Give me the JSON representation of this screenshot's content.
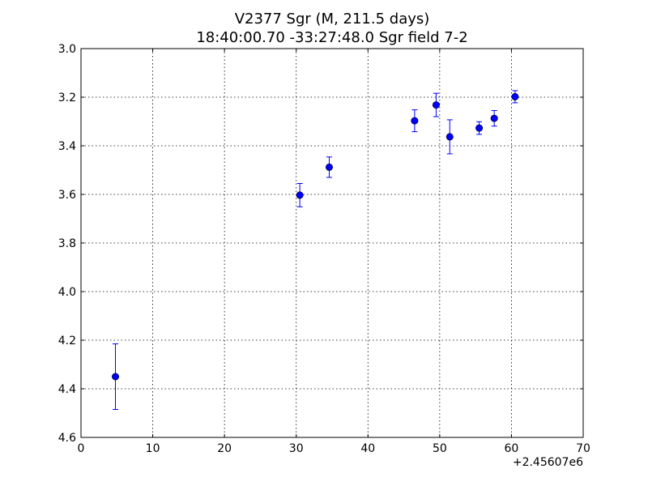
{
  "chart_data": {
    "type": "scatter",
    "title": "V2377 Sgr  (M, 211.5 days)",
    "subtitle": "18:40:00.70 -33:27:48.0 Sgr field 7-2",
    "xlabel": "",
    "ylabel": "",
    "x_offset_label": "+2.45607e6",
    "xlim": [
      0,
      70
    ],
    "ylim": [
      3.0,
      4.6
    ],
    "y_inverted": true,
    "grid": true,
    "x_ticks": [
      "0",
      "10",
      "20",
      "30",
      "40",
      "50",
      "60",
      "70"
    ],
    "y_ticks": [
      "3.0",
      "3.2",
      "3.4",
      "3.6",
      "3.8",
      "4.0",
      "4.2",
      "4.4",
      "4.6"
    ],
    "marker_color": "#0000ff",
    "errorbar_color": "#0000ff",
    "series": [
      {
        "points": [
          {
            "x": 4.8,
            "y": 4.35,
            "err": 0.135
          },
          {
            "x": 30.5,
            "y": 3.603,
            "err": 0.048
          },
          {
            "x": 34.6,
            "y": 3.488,
            "err": 0.042
          },
          {
            "x": 46.5,
            "y": 3.297,
            "err": 0.045
          },
          {
            "x": 49.5,
            "y": 3.232,
            "err": 0.048
          },
          {
            "x": 51.4,
            "y": 3.363,
            "err": 0.07
          },
          {
            "x": 55.5,
            "y": 3.327,
            "err": 0.026
          },
          {
            "x": 57.6,
            "y": 3.287,
            "err": 0.032
          },
          {
            "x": 60.5,
            "y": 3.198,
            "err": 0.025
          }
        ]
      }
    ]
  }
}
